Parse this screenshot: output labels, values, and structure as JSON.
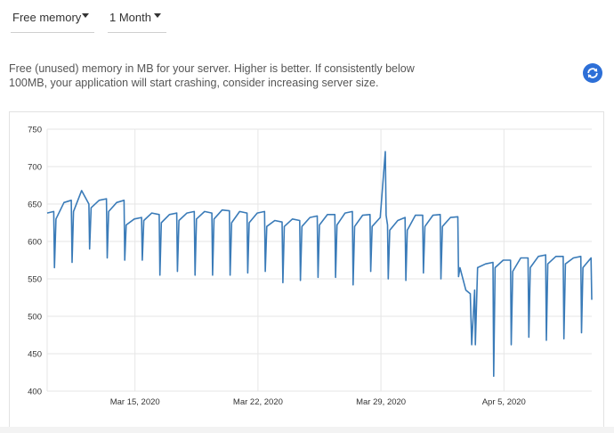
{
  "controls": {
    "metric_dropdown": {
      "selected": "Free memory"
    },
    "range_dropdown": {
      "selected": "1 Month"
    }
  },
  "description": "Free (unused) memory in MB for your server. Higher is better. If consistently below 100MB, your application will start crashing, consider increasing server size.",
  "refresh_icon": "refresh-icon",
  "colors": {
    "accent": "#2d6fd7",
    "series": "#3a7bb8",
    "grid": "#e6e6e6"
  },
  "chart_data": {
    "type": "line",
    "title": "",
    "xlabel": "",
    "ylabel": "",
    "ylim": [
      400,
      750
    ],
    "yticks": [
      400,
      450,
      500,
      550,
      600,
      650,
      700,
      750
    ],
    "xlim": [
      "2020-03-10",
      "2020-04-10"
    ],
    "xticks": [
      {
        "date": "2020-03-15",
        "label": "Mar 15, 2020"
      },
      {
        "date": "2020-03-22",
        "label": "Mar 22, 2020"
      },
      {
        "date": "2020-03-29",
        "label": "Mar 29, 2020"
      },
      {
        "date": "2020-04-05",
        "label": "Apr 5, 2020"
      }
    ],
    "grid": true,
    "legend": "none",
    "series": [
      {
        "name": "",
        "x": [
          "2020-03-10 00:00",
          "2020-03-10 09:00",
          "2020-03-10 10:00",
          "2020-03-10 12:00",
          "2020-03-10 23:00",
          "2020-03-11 09:00",
          "2020-03-11 10:00",
          "2020-03-11 12:00",
          "2020-03-11 23:00",
          "2020-03-12 09:00",
          "2020-03-12 10:00",
          "2020-03-12 12:00",
          "2020-03-12 23:00",
          "2020-03-13 09:00",
          "2020-03-13 10:00",
          "2020-03-13 12:00",
          "2020-03-13 23:00",
          "2020-03-14 09:00",
          "2020-03-14 10:00",
          "2020-03-14 12:00",
          "2020-03-14 23:00",
          "2020-03-15 09:00",
          "2020-03-15 10:00",
          "2020-03-15 12:00",
          "2020-03-15 23:00",
          "2020-03-16 09:00",
          "2020-03-16 10:00",
          "2020-03-16 12:00",
          "2020-03-16 23:00",
          "2020-03-17 09:00",
          "2020-03-17 10:00",
          "2020-03-17 12:00",
          "2020-03-17 23:00",
          "2020-03-18 09:00",
          "2020-03-18 10:00",
          "2020-03-18 12:00",
          "2020-03-18 23:00",
          "2020-03-19 09:00",
          "2020-03-19 10:00",
          "2020-03-19 12:00",
          "2020-03-19 23:00",
          "2020-03-20 09:00",
          "2020-03-20 10:00",
          "2020-03-20 12:00",
          "2020-03-20 23:00",
          "2020-03-21 09:00",
          "2020-03-21 10:00",
          "2020-03-21 12:00",
          "2020-03-21 23:00",
          "2020-03-22 09:00",
          "2020-03-22 10:00",
          "2020-03-22 12:00",
          "2020-03-22 23:00",
          "2020-03-23 09:00",
          "2020-03-23 10:00",
          "2020-03-23 12:00",
          "2020-03-23 23:00",
          "2020-03-24 09:00",
          "2020-03-24 10:00",
          "2020-03-24 12:00",
          "2020-03-24 23:00",
          "2020-03-25 09:00",
          "2020-03-25 10:00",
          "2020-03-25 12:00",
          "2020-03-25 23:00",
          "2020-03-26 09:00",
          "2020-03-26 10:00",
          "2020-03-26 12:00",
          "2020-03-26 23:00",
          "2020-03-27 09:00",
          "2020-03-27 10:00",
          "2020-03-27 12:00",
          "2020-03-27 23:00",
          "2020-03-28 09:00",
          "2020-03-28 10:00",
          "2020-03-28 12:00",
          "2020-03-28 23:00",
          "2020-03-29 06:00",
          "2020-03-29 07:00",
          "2020-03-29 09:00",
          "2020-03-29 10:00",
          "2020-03-29 12:00",
          "2020-03-29 23:00",
          "2020-03-30 09:00",
          "2020-03-30 10:00",
          "2020-03-30 12:00",
          "2020-03-30 23:00",
          "2020-03-31 09:00",
          "2020-03-31 10:00",
          "2020-03-31 12:00",
          "2020-03-31 23:00",
          "2020-04-01 09:00",
          "2020-04-01 10:00",
          "2020-04-01 12:00",
          "2020-04-01 23:00",
          "2020-04-02 09:00",
          "2020-04-02 10:00",
          "2020-04-02 12:00",
          "2020-04-02 20:00",
          "2020-04-03 02:00",
          "2020-04-03 04:00",
          "2020-04-03 08:00",
          "2020-04-03 09:00",
          "2020-04-03 12:00",
          "2020-04-03 23:00",
          "2020-04-04 09:00",
          "2020-04-04 10:00",
          "2020-04-04 12:00",
          "2020-04-04 23:00",
          "2020-04-05 09:00",
          "2020-04-05 10:00",
          "2020-04-05 12:00",
          "2020-04-05 23:00",
          "2020-04-06 09:00",
          "2020-04-06 10:00",
          "2020-04-06 12:00",
          "2020-04-06 23:00",
          "2020-04-07 09:00",
          "2020-04-07 10:00",
          "2020-04-07 12:00",
          "2020-04-07 23:00",
          "2020-04-08 09:00",
          "2020-04-08 10:00",
          "2020-04-08 12:00",
          "2020-04-08 23:00",
          "2020-04-09 09:00",
          "2020-04-09 10:00",
          "2020-04-09 12:00",
          "2020-04-09 23:00",
          "2020-04-10 00:00"
        ],
        "y": [
          638,
          640,
          565,
          630,
          652,
          655,
          572,
          640,
          668,
          650,
          590,
          645,
          655,
          657,
          578,
          640,
          652,
          655,
          575,
          622,
          630,
          632,
          575,
          628,
          638,
          636,
          555,
          625,
          636,
          638,
          560,
          628,
          638,
          640,
          555,
          630,
          640,
          638,
          555,
          630,
          642,
          641,
          555,
          625,
          640,
          638,
          558,
          625,
          638,
          640,
          560,
          620,
          628,
          626,
          545,
          620,
          630,
          628,
          548,
          620,
          632,
          634,
          552,
          622,
          636,
          636,
          552,
          622,
          638,
          640,
          542,
          620,
          635,
          636,
          560,
          620,
          632,
          720,
          635,
          622,
          550,
          615,
          628,
          632,
          548,
          615,
          635,
          635,
          558,
          620,
          635,
          636,
          550,
          620,
          632,
          633,
          553,
          565,
          535,
          530,
          462,
          535,
          462,
          565,
          570,
          572,
          420,
          565,
          575,
          575,
          462,
          560,
          578,
          578,
          472,
          565,
          580,
          582,
          468,
          570,
          580,
          580,
          470,
          570,
          578,
          580,
          478,
          565,
          578,
          522
        ]
      }
    ]
  }
}
